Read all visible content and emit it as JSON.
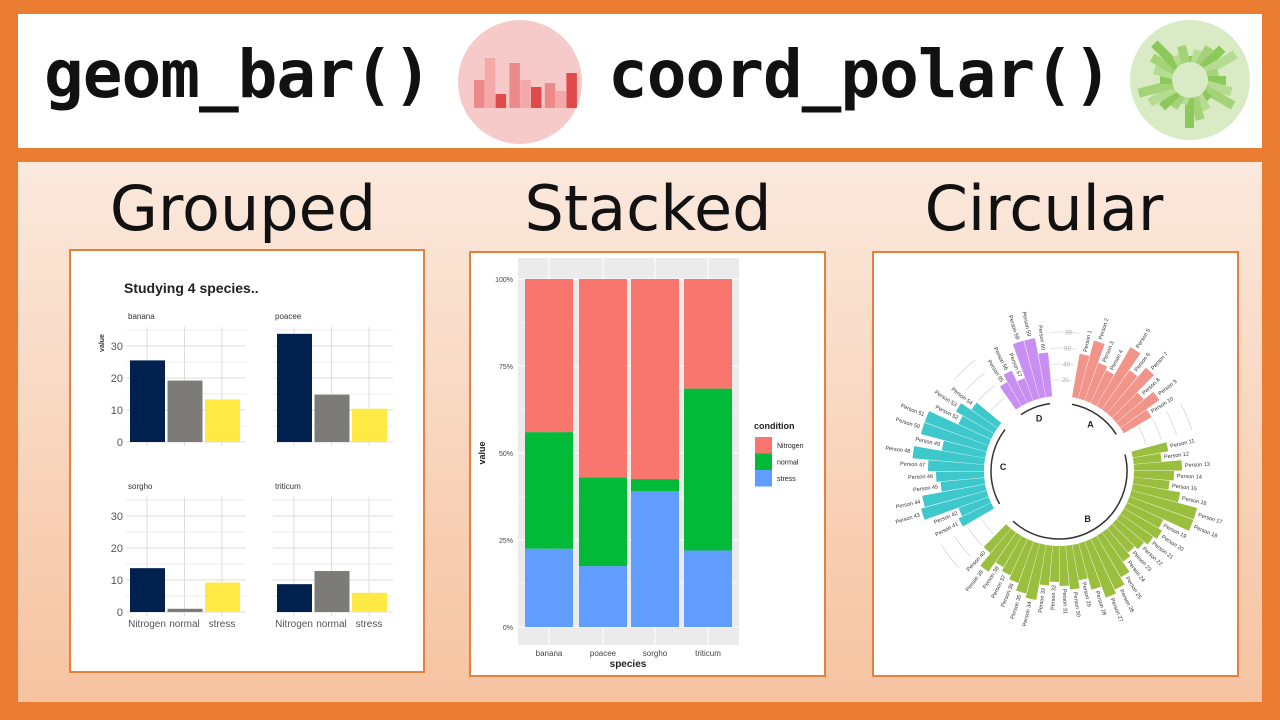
{
  "header": {
    "left_code": "geom_bar()",
    "right_code": "coord_polar()",
    "left_icon": "bar-chart-icon",
    "right_icon": "circular-bar-chart-icon",
    "colors": {
      "background": "#ea7d32",
      "pink_icon": "#f7caca",
      "green_icon": "#d8ebc4"
    }
  },
  "sections": {
    "grouped": "Grouped",
    "stacked": "Stacked",
    "circular": "Circular"
  },
  "chart_data": [
    {
      "type": "bar",
      "title": "Studying 4 species..",
      "ylabel": "value",
      "ylim": [
        0,
        35
      ],
      "yticks": [
        "0",
        "10",
        "20",
        "30"
      ],
      "categories": [
        "Nitrogen",
        "normal",
        "stress"
      ],
      "colors": [
        "#00204d",
        "#7c7b78",
        "#ffe945"
      ],
      "facets": [
        {
          "name": "banana",
          "values": [
            25.5,
            19.2,
            13.3
          ]
        },
        {
          "name": "poacee",
          "values": [
            33.8,
            14.8,
            10.4
          ]
        },
        {
          "name": "sorgho",
          "values": [
            13.7,
            1.0,
            9.2
          ]
        },
        {
          "name": "triticum",
          "values": [
            8.7,
            12.8,
            6.0
          ]
        }
      ],
      "grid": true
    },
    {
      "type": "bar",
      "stacked": "percent",
      "xlabel": "species",
      "ylabel": "value",
      "categories": [
        "banana",
        "poacee",
        "sorgho",
        "triticum"
      ],
      "yticks": [
        "0%",
        "25%",
        "50%",
        "75%",
        "100%"
      ],
      "legend_title": "condition",
      "legend_position": "right",
      "series": [
        {
          "name": "Nitrogen",
          "color": "#f8766d",
          "values": [
            44.0,
            57.0,
            57.5,
            31.5
          ]
        },
        {
          "name": "normal",
          "color": "#00ba38",
          "values": [
            33.5,
            25.5,
            3.5,
            46.5
          ]
        },
        {
          "name": "stress",
          "color": "#619cff",
          "values": [
            22.5,
            17.5,
            39.0,
            22.0
          ]
        }
      ],
      "grid": true
    },
    {
      "type": "bar",
      "coord": "polar",
      "yticks": [
        "20",
        "40",
        "60",
        "80"
      ],
      "groups": [
        {
          "name": "A",
          "color": "#f1948a",
          "labels": [
            "Person 1",
            "Person 2",
            "Person 3",
            "Person 4",
            "Person 5",
            "Person 6",
            "Person 7",
            "Person 8",
            "Person 9",
            "Person 10"
          ],
          "values": [
            55,
            75,
            50,
            45,
            85,
            60,
            75,
            45,
            60,
            40
          ]
        },
        {
          "name": "B",
          "color": "#9abf3e",
          "labels": [
            "Person 11",
            "Person 12",
            "Person 13",
            "Person 14",
            "Person 15",
            "Person 16",
            "Person 17",
            "Person 18",
            "Person 19",
            "Person 20",
            "Person 21",
            "Person 22",
            "Person 23",
            "Person 24",
            "Person 25",
            "Person 26",
            "Person 27",
            "Person 28",
            "Person 29",
            "Person 30",
            "Person 31",
            "Person 32",
            "Person 33",
            "Person 34",
            "Person 35",
            "Person 36",
            "Person 37",
            "Person 38",
            "Person 39",
            "Person 40"
          ],
          "values": [
            45,
            35,
            60,
            50,
            45,
            60,
            85,
            85,
            50,
            55,
            50,
            45,
            40,
            45,
            60,
            70,
            75,
            60,
            45,
            55,
            50,
            45,
            50,
            70,
            65,
            55,
            50,
            45,
            60,
            40
          ]
        },
        {
          "name": "C",
          "color": "#3ec8cc",
          "labels": [
            "Person 41",
            "Person 42",
            "Person 43",
            "Person 44",
            "Person 45",
            "Person 46",
            "Person 47",
            "Person 48",
            "Person 49",
            "Person 50",
            "Person 51",
            "Person 52",
            "Person 53",
            "Person 54"
          ],
          "values": [
            45,
            40,
            85,
            80,
            55,
            60,
            70,
            90,
            55,
            85,
            85,
            45,
            55,
            40
          ]
        },
        {
          "name": "D",
          "color": "#c98ef2",
          "labels": [
            "Person 55",
            "Person 56",
            "Person 57",
            "Person 58",
            "Person 59",
            "Person 60"
          ],
          "values": [
            35,
            45,
            30,
            75,
            75,
            55
          ]
        }
      ]
    }
  ]
}
